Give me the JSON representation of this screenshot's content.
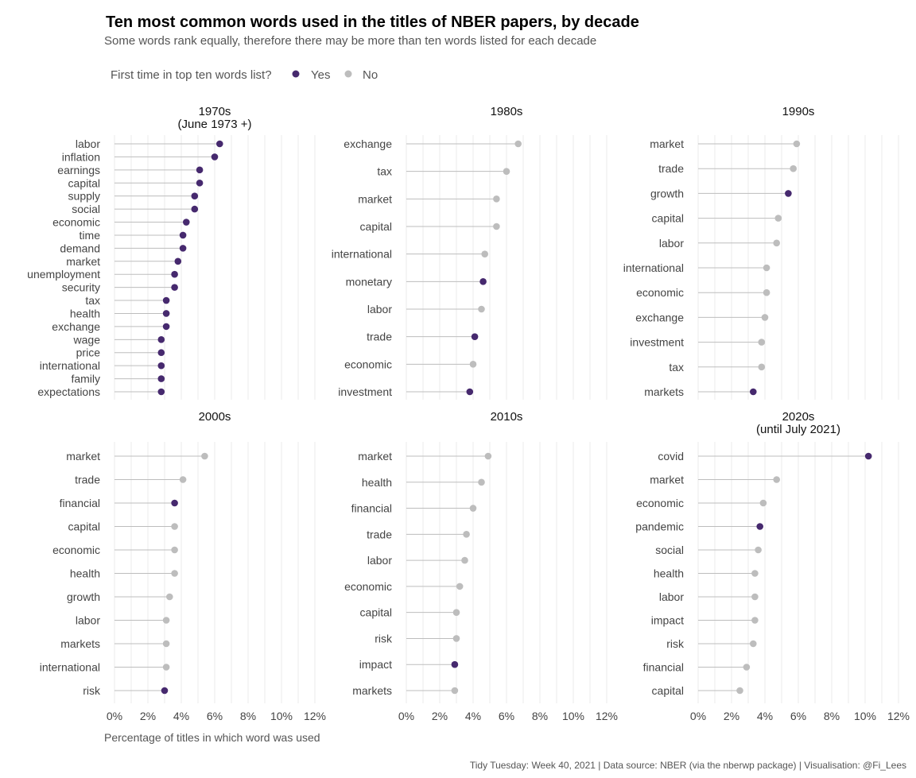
{
  "colors": {
    "yes": "#46296e",
    "no": "#bdbdbd"
  },
  "chart_data": {
    "type": "lollipop",
    "title": "Ten most common words used in the titles of NBER papers, by decade",
    "subtitle": "Some words rank equally, therefore there may be more than ten words listed for each decade",
    "legend": {
      "title": "First time in top ten words list?",
      "items": [
        "Yes",
        "No"
      ],
      "placement": "top-left"
    },
    "xlabel": "Percentage of titles in which word was used",
    "xlim": [
      0,
      12
    ],
    "xticks": [
      0,
      2,
      4,
      6,
      8,
      10,
      12
    ],
    "tick_labels": [
      "0%",
      "2%",
      "4%",
      "6%",
      "8%",
      "10%",
      "12%"
    ],
    "caption": "Tidy Tuesday: Week 40, 2021 | Data source: NBER (via the nberwp package) | Visualisation: @Fi_Lees",
    "panels": [
      {
        "decade": "1970s",
        "subtitle": "(June 1973 +)",
        "words": [
          {
            "word": "labor",
            "value": 6.3,
            "first": "Yes"
          },
          {
            "word": "inflation",
            "value": 6.0,
            "first": "Yes"
          },
          {
            "word": "earnings",
            "value": 5.1,
            "first": "Yes"
          },
          {
            "word": "capital",
            "value": 5.1,
            "first": "Yes"
          },
          {
            "word": "supply",
            "value": 4.8,
            "first": "Yes"
          },
          {
            "word": "social",
            "value": 4.8,
            "first": "Yes"
          },
          {
            "word": "economic",
            "value": 4.3,
            "first": "Yes"
          },
          {
            "word": "time",
            "value": 4.1,
            "first": "Yes"
          },
          {
            "word": "demand",
            "value": 4.1,
            "first": "Yes"
          },
          {
            "word": "market",
            "value": 3.8,
            "first": "Yes"
          },
          {
            "word": "unemployment",
            "value": 3.6,
            "first": "Yes"
          },
          {
            "word": "security",
            "value": 3.6,
            "first": "Yes"
          },
          {
            "word": "tax",
            "value": 3.1,
            "first": "Yes"
          },
          {
            "word": "health",
            "value": 3.1,
            "first": "Yes"
          },
          {
            "word": "exchange",
            "value": 3.1,
            "first": "Yes"
          },
          {
            "word": "wage",
            "value": 2.8,
            "first": "Yes"
          },
          {
            "word": "price",
            "value": 2.8,
            "first": "Yes"
          },
          {
            "word": "international",
            "value": 2.8,
            "first": "Yes"
          },
          {
            "word": "family",
            "value": 2.8,
            "first": "Yes"
          },
          {
            "word": "expectations",
            "value": 2.8,
            "first": "Yes"
          }
        ]
      },
      {
        "decade": "1980s",
        "subtitle": "",
        "words": [
          {
            "word": "exchange",
            "value": 6.7,
            "first": "No"
          },
          {
            "word": "tax",
            "value": 6.0,
            "first": "No"
          },
          {
            "word": "market",
            "value": 5.4,
            "first": "No"
          },
          {
            "word": "capital",
            "value": 5.4,
            "first": "No"
          },
          {
            "word": "international",
            "value": 4.7,
            "first": "No"
          },
          {
            "word": "monetary",
            "value": 4.6,
            "first": "Yes"
          },
          {
            "word": "labor",
            "value": 4.5,
            "first": "No"
          },
          {
            "word": "trade",
            "value": 4.1,
            "first": "Yes"
          },
          {
            "word": "economic",
            "value": 4.0,
            "first": "No"
          },
          {
            "word": "investment",
            "value": 3.8,
            "first": "Yes"
          }
        ]
      },
      {
        "decade": "1990s",
        "subtitle": "",
        "words": [
          {
            "word": "market",
            "value": 5.9,
            "first": "No"
          },
          {
            "word": "trade",
            "value": 5.7,
            "first": "No"
          },
          {
            "word": "growth",
            "value": 5.4,
            "first": "Yes"
          },
          {
            "word": "capital",
            "value": 4.8,
            "first": "No"
          },
          {
            "word": "labor",
            "value": 4.7,
            "first": "No"
          },
          {
            "word": "international",
            "value": 4.1,
            "first": "No"
          },
          {
            "word": "economic",
            "value": 4.1,
            "first": "No"
          },
          {
            "word": "exchange",
            "value": 4.0,
            "first": "No"
          },
          {
            "word": "investment",
            "value": 3.8,
            "first": "No"
          },
          {
            "word": "tax",
            "value": 3.8,
            "first": "No"
          },
          {
            "word": "markets",
            "value": 3.3,
            "first": "Yes"
          }
        ]
      },
      {
        "decade": "2000s",
        "subtitle": "",
        "words": [
          {
            "word": "market",
            "value": 5.4,
            "first": "No"
          },
          {
            "word": "trade",
            "value": 4.1,
            "first": "No"
          },
          {
            "word": "financial",
            "value": 3.6,
            "first": "Yes"
          },
          {
            "word": "capital",
            "value": 3.6,
            "first": "No"
          },
          {
            "word": "economic",
            "value": 3.6,
            "first": "No"
          },
          {
            "word": "health",
            "value": 3.6,
            "first": "No"
          },
          {
            "word": "growth",
            "value": 3.3,
            "first": "No"
          },
          {
            "word": "labor",
            "value": 3.1,
            "first": "No"
          },
          {
            "word": "markets",
            "value": 3.1,
            "first": "No"
          },
          {
            "word": "international",
            "value": 3.1,
            "first": "No"
          },
          {
            "word": "risk",
            "value": 3.0,
            "first": "Yes"
          }
        ]
      },
      {
        "decade": "2010s",
        "subtitle": "",
        "words": [
          {
            "word": "market",
            "value": 4.9,
            "first": "No"
          },
          {
            "word": "health",
            "value": 4.5,
            "first": "No"
          },
          {
            "word": "financial",
            "value": 4.0,
            "first": "No"
          },
          {
            "word": "trade",
            "value": 3.6,
            "first": "No"
          },
          {
            "word": "labor",
            "value": 3.5,
            "first": "No"
          },
          {
            "word": "economic",
            "value": 3.2,
            "first": "No"
          },
          {
            "word": "capital",
            "value": 3.0,
            "first": "No"
          },
          {
            "word": "risk",
            "value": 3.0,
            "first": "No"
          },
          {
            "word": "impact",
            "value": 2.9,
            "first": "Yes"
          },
          {
            "word": "markets",
            "value": 2.9,
            "first": "No"
          }
        ]
      },
      {
        "decade": "2020s",
        "subtitle": "(until July 2021)",
        "words": [
          {
            "word": "covid",
            "value": 10.2,
            "first": "Yes"
          },
          {
            "word": "market",
            "value": 4.7,
            "first": "No"
          },
          {
            "word": "economic",
            "value": 3.9,
            "first": "No"
          },
          {
            "word": "pandemic",
            "value": 3.7,
            "first": "Yes"
          },
          {
            "word": "social",
            "value": 3.6,
            "first": "No"
          },
          {
            "word": "health",
            "value": 3.4,
            "first": "No"
          },
          {
            "word": "labor",
            "value": 3.4,
            "first": "No"
          },
          {
            "word": "impact",
            "value": 3.4,
            "first": "No"
          },
          {
            "word": "risk",
            "value": 3.3,
            "first": "No"
          },
          {
            "word": "financial",
            "value": 2.9,
            "first": "No"
          },
          {
            "word": "capital",
            "value": 2.5,
            "first": "No"
          }
        ]
      }
    ]
  }
}
